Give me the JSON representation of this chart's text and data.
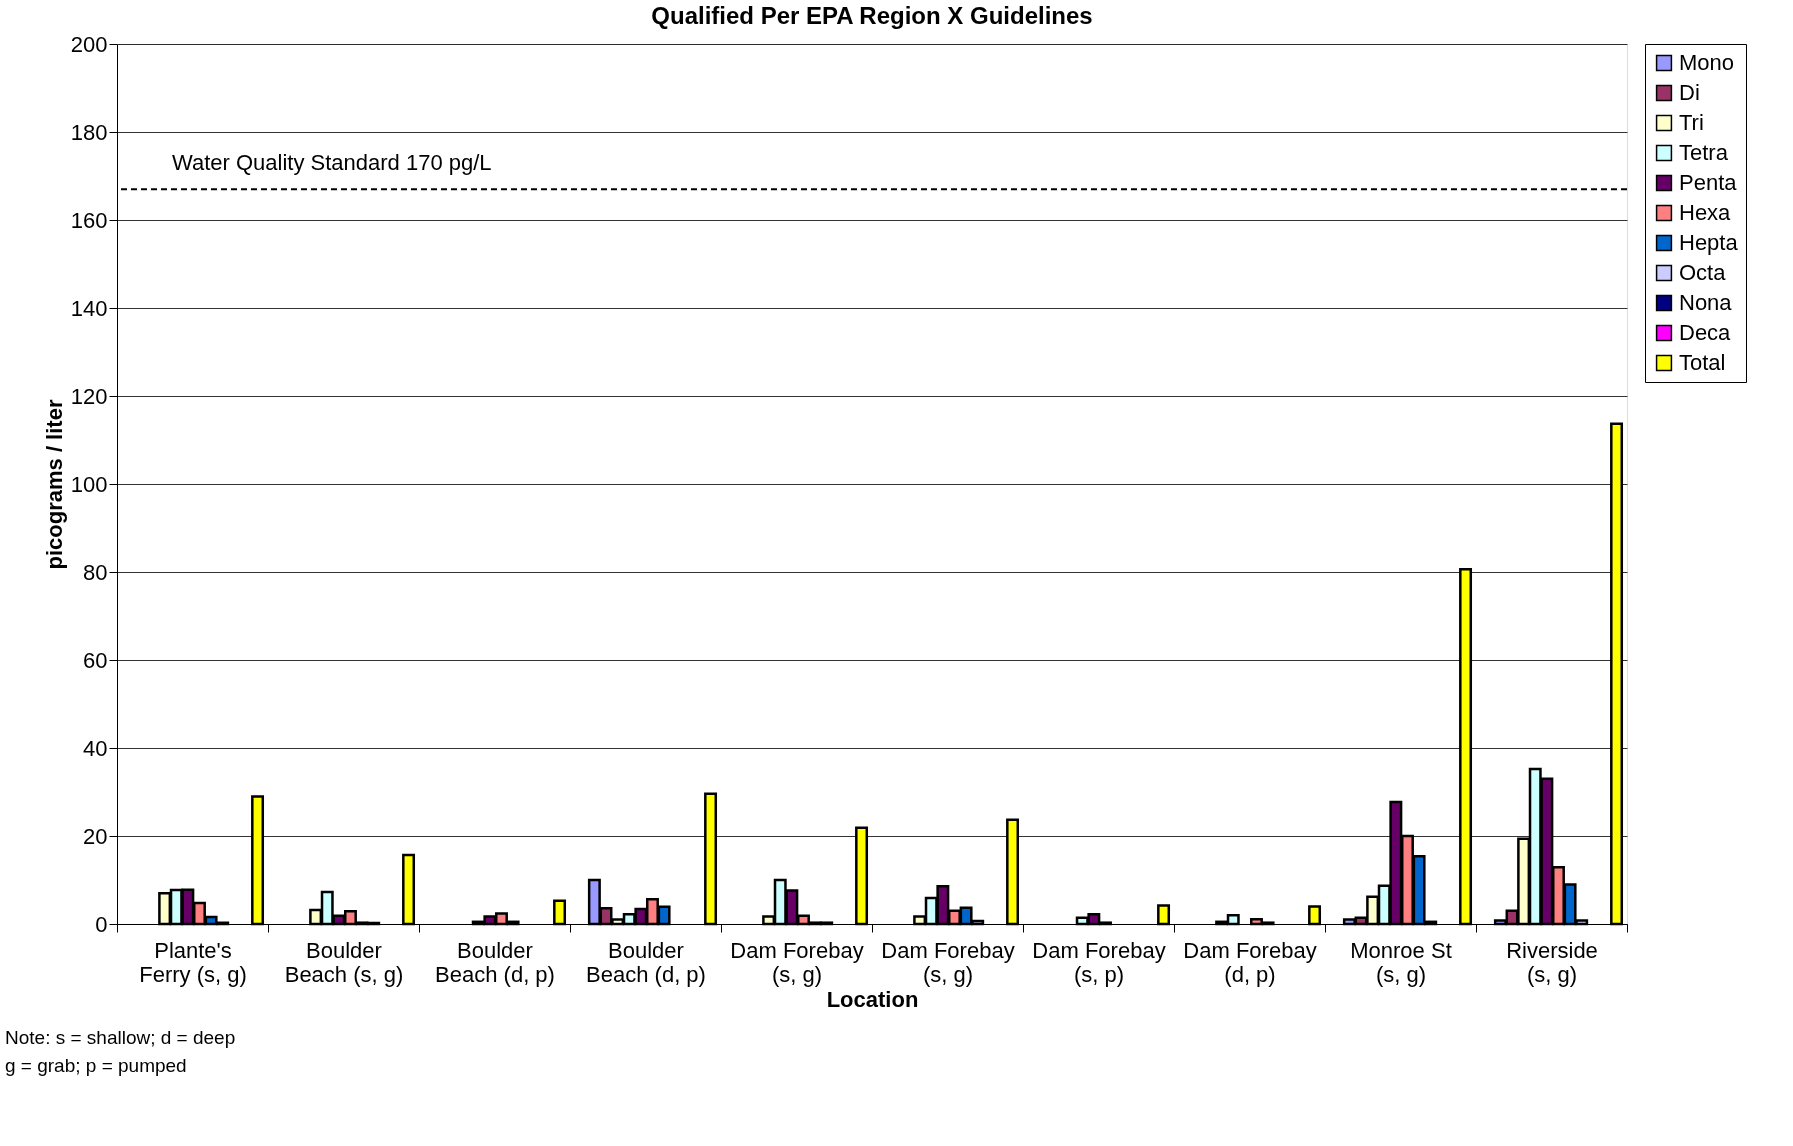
{
  "chart_data": {
    "type": "bar",
    "title": "Qualified Per EPA Region X Guidelines",
    "xlabel": "Location",
    "ylabel": "picograms / liter",
    "categories": [
      "Plante's Ferry (s, g)",
      "Boulder Beach (s, g)",
      "Boulder Beach (d, p)",
      "Boulder Beach (d, p)",
      "Dam Forebay (s, g)",
      "Dam Forebay (s, g)",
      "Dam Forebay (s, p)",
      "Dam Forebay (d, p)",
      "Monroe St (s, g)",
      "Riverside (s, g)"
    ],
    "series": [
      {
        "name": "Mono",
        "color": "#9999ff",
        "values": [
          null,
          null,
          null,
          10,
          null,
          null,
          null,
          null,
          1.0,
          0.8
        ]
      },
      {
        "name": "Di",
        "color": "#993366",
        "values": [
          null,
          null,
          null,
          3.6,
          null,
          null,
          null,
          null,
          1.4,
          3.0
        ]
      },
      {
        "name": "Tri",
        "color": "#ffffcc",
        "values": [
          7.0,
          3.2,
          null,
          1.0,
          1.7,
          1.7,
          null,
          0.5,
          6.2,
          19.4
        ]
      },
      {
        "name": "Tetra",
        "color": "#ccffff",
        "values": [
          7.7,
          7.3,
          0.5,
          2.2,
          10,
          5.9,
          1.4,
          2.0,
          8.7,
          35.2
        ]
      },
      {
        "name": "Penta",
        "color": "#660066",
        "values": [
          7.8,
          1.9,
          1.7,
          3.4,
          7.6,
          8.6,
          2.2,
          null,
          27.7,
          33
        ]
      },
      {
        "name": "Hexa",
        "color": "#ff8080",
        "values": [
          4.8,
          2.9,
          2.4,
          5.6,
          1.9,
          3.0,
          0.3,
          1.1,
          20,
          12.9
        ]
      },
      {
        "name": "Hepta",
        "color": "#0066cc",
        "values": [
          1.6,
          0.3,
          0.5,
          3.9,
          0.3,
          3.7,
          null,
          0.3,
          15.4,
          9
        ]
      },
      {
        "name": "Octa",
        "color": "#ccccff",
        "values": [
          0.3,
          0.2,
          null,
          null,
          0.3,
          0.7,
          null,
          null,
          0.5,
          0.8
        ]
      },
      {
        "name": "Nona",
        "color": "#000080",
        "values": [
          null,
          null,
          null,
          null,
          null,
          null,
          null,
          null,
          null,
          null
        ]
      },
      {
        "name": "Deca",
        "color": "#ff00ff",
        "values": [
          null,
          null,
          null,
          null,
          null,
          null,
          null,
          null,
          null,
          null
        ]
      },
      {
        "name": "Total",
        "color": "#ffff00",
        "values": [
          29,
          15.7,
          5.3,
          29.6,
          21.9,
          23.7,
          4.2,
          4.0,
          80.6,
          113.7
        ]
      }
    ],
    "ylim": [
      0,
      200
    ],
    "yticks": [
      0,
      20,
      40,
      60,
      80,
      100,
      120,
      140,
      160,
      180,
      200
    ],
    "grid": "y",
    "legend": "right",
    "ref_lines": [
      {
        "axis": "y",
        "value": 167,
        "label": "Water Quality Standard 170 pg/L",
        "line_style": "dashed",
        "color": "#000000"
      }
    ],
    "annotations": [
      "Note: s = shallow; d = deep",
      "g = grab; p = pumped"
    ]
  }
}
